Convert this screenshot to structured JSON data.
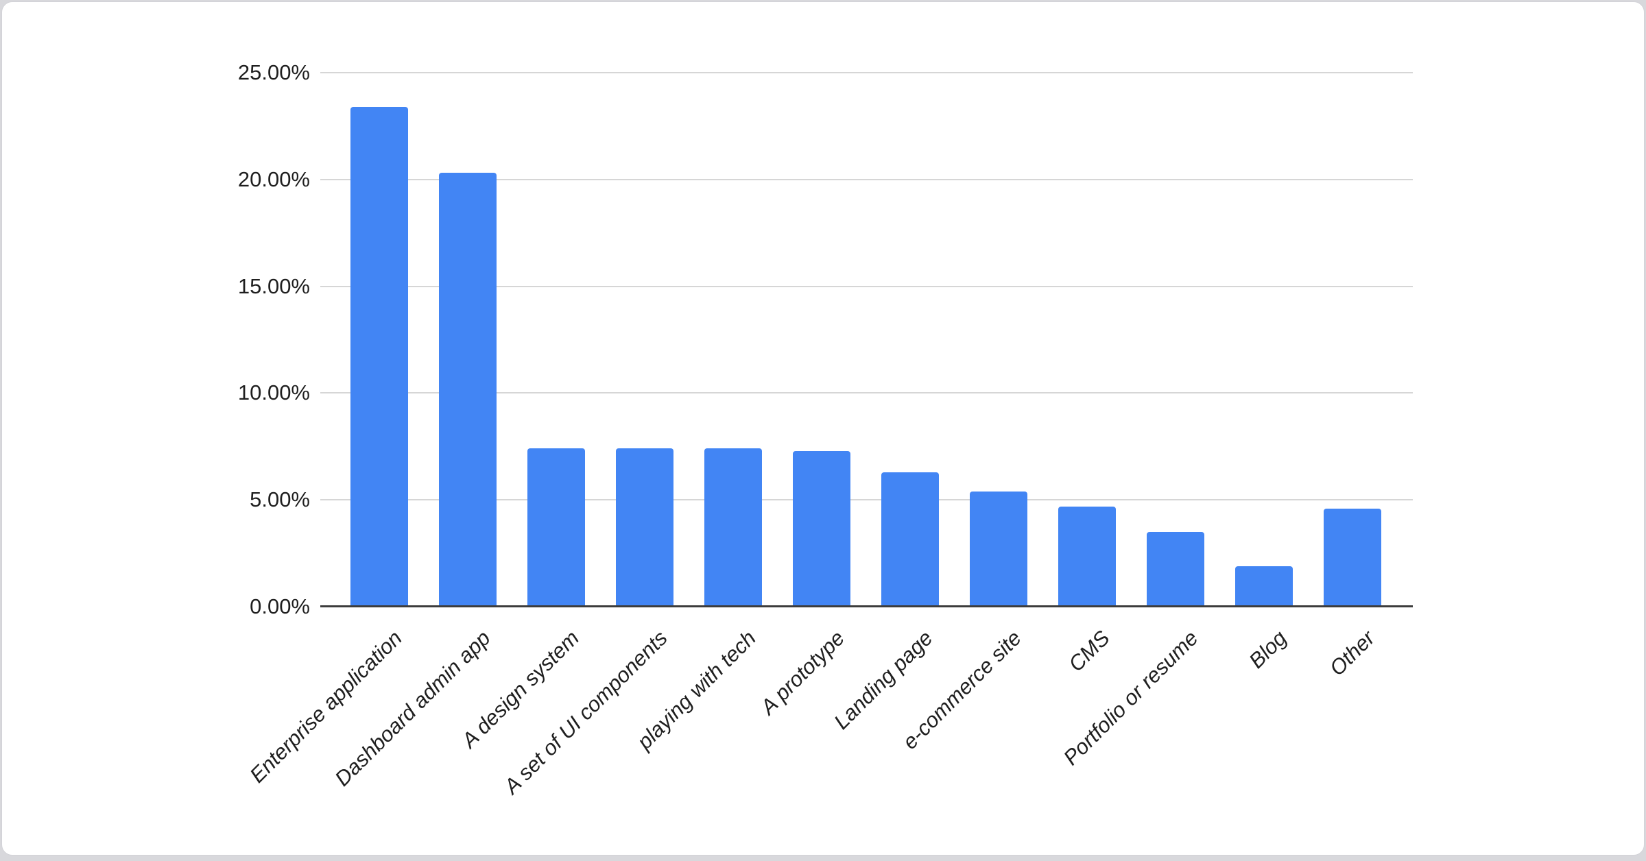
{
  "chart_data": {
    "type": "bar",
    "title": "",
    "xlabel": "",
    "ylabel": "",
    "categories": [
      "Enterprise application",
      "Dashboard admin app",
      "A design system",
      "A set of UI components",
      "playing with tech",
      "A prototype",
      "Landing page",
      "e-commerce site",
      "CMS",
      "Portfolio or resume",
      "Blog",
      "Other"
    ],
    "values": [
      23.4,
      20.3,
      7.4,
      7.4,
      7.4,
      7.3,
      6.3,
      5.4,
      4.7,
      3.5,
      1.9,
      4.6
    ],
    "value_unit": "%",
    "ylim": [
      0,
      25
    ],
    "y_ticks": [
      {
        "label": "0.00%",
        "value": 0
      },
      {
        "label": "5.00%",
        "value": 5
      },
      {
        "label": "10.00%",
        "value": 10
      },
      {
        "label": "15.00%",
        "value": 15
      },
      {
        "label": "20.00%",
        "value": 20
      },
      {
        "label": "25.00%",
        "value": 25
      }
    ],
    "grid": true,
    "legend": false,
    "x_labels_rotated_degrees": 45,
    "x_labels_italic": true
  },
  "colors": {
    "bar": "#4285F4",
    "gridline": "#d6d6d6",
    "axis_line": "#3c3c3c",
    "tick_text": "#1f1f1f",
    "card_background": "#ffffff",
    "card_border": "#d2d2d7",
    "page_background": "#d8d8dc"
  }
}
